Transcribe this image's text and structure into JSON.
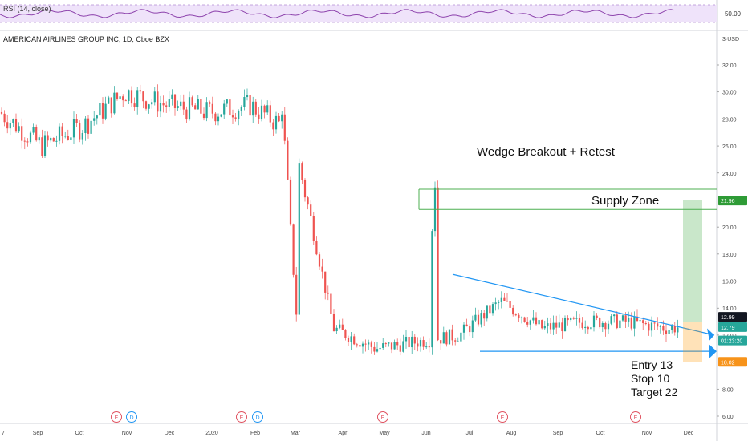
{
  "chart_data": {
    "type": "candlestick",
    "title": "AMERICAN AIRLINES GROUP INC, 1D, Cboe BZX",
    "indicator": "RSI (14, close)",
    "rsi_axis_label": "50.00",
    "y_axis": {
      "unit_label": "3·USD",
      "ticks": [
        "32.00",
        "30.00",
        "28.00",
        "26.00",
        "24.00",
        "22.00",
        "20.00",
        "18.00",
        "16.00",
        "14.00",
        "12.00",
        "10.00",
        "8.00",
        "6.00"
      ],
      "ylim": [
        5.5,
        33.5
      ]
    },
    "x_ticks": [
      "7",
      "Sep",
      "Oct",
      "Nov",
      "Dec",
      "2020",
      "Feb",
      "Mar",
      "Apr",
      "May",
      "Jun",
      "Jul",
      "Aug",
      "Sep",
      "Oct",
      "Nov",
      "Dec"
    ],
    "price_labels": {
      "supply_top": "21.96",
      "current": "12.99",
      "last": "12.79",
      "countdown": "01:23:20",
      "stop": "10.02"
    },
    "events": [
      "E",
      "D",
      "E",
      "D",
      "E",
      "E",
      "E"
    ],
    "annotations": {
      "headline": "Wedge Breakout + Retest",
      "zone": "Supply Zone",
      "entry": "Entry 13",
      "stop": "Stop 10",
      "target": "Target 22"
    },
    "colors": {
      "up": "#26a69a",
      "down": "#ef5350",
      "trend": "#2196f3",
      "zone": "#4caf50",
      "rsi": "#8e44ad"
    },
    "close_series_by_month": [
      28.5,
      26.0,
      27.5,
      30.0,
      29.0,
      28.5,
      29.0,
      27.0,
      12.5,
      11.0,
      11.5,
      12.0,
      14.5,
      12.5,
      13.0,
      13.0,
      12.5,
      12.9
    ]
  }
}
